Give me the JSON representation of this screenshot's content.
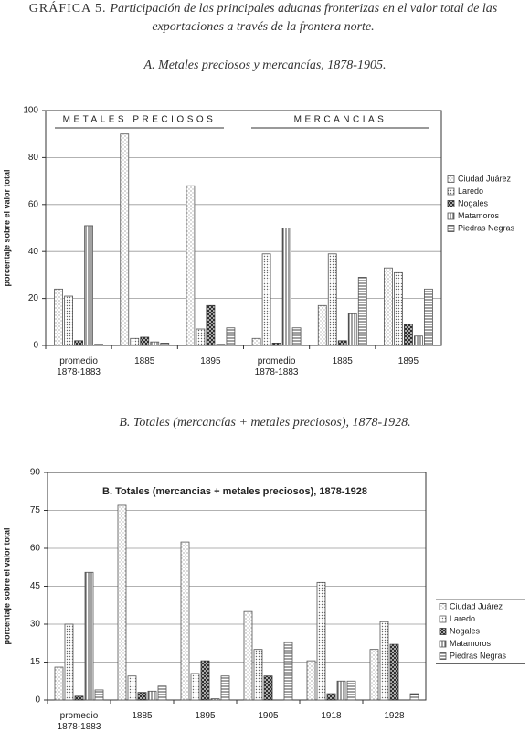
{
  "header": {
    "label": "GRÁFICA 5.",
    "title": "Participación de las principales aduanas fronterizas en el valor total de las exportaciones a través de la frontera norte."
  },
  "chart_data": [
    {
      "type": "bar",
      "heading": "A. Metales preciosos y mercancías, 1878-1905.",
      "y_label": "porcentaje sobre el valor total",
      "annotations": [
        "METALES PRECIOSOS",
        "MERCANCIAS"
      ],
      "categories": [
        "promedio\n1878-1883",
        "1885",
        "1895",
        "promedio\n1878-1883",
        "1885",
        "1895"
      ],
      "series": [
        {
          "name": "Ciudad Juárez",
          "color": "#555555",
          "pattern": "dots",
          "values": [
            24,
            90,
            68,
            3,
            17,
            33
          ]
        },
        {
          "name": "Laredo",
          "color": "#555555",
          "pattern": "dense",
          "values": [
            21,
            3,
            7,
            39,
            39,
            31
          ]
        },
        {
          "name": "Nogales",
          "color": "#333333",
          "pattern": "cross",
          "values": [
            2,
            3.5,
            17,
            1,
            2,
            9
          ]
        },
        {
          "name": "Matamoros",
          "color": "#555555",
          "pattern": "vert",
          "values": [
            51,
            1.5,
            0.5,
            50,
            13.5,
            4
          ]
        },
        {
          "name": "Piedras Negras",
          "color": "#555555",
          "pattern": "horiz",
          "values": [
            0.5,
            1,
            7.5,
            7.5,
            29,
            24
          ]
        }
      ],
      "ylim": [
        0,
        100
      ],
      "yticks": [
        0,
        20,
        40,
        60,
        80,
        100
      ],
      "grid": true,
      "legend": "right"
    },
    {
      "type": "bar",
      "heading": "B. Totales (mercancías + metales preciosos), 1878-1928.",
      "title": "B. Totales (mercancias + metales preciosos), 1878-1928",
      "y_label": "porcentaje sobre el valor total",
      "categories": [
        "promedio\n1878-1883",
        "1885",
        "1895",
        "1905",
        "1918",
        "1928"
      ],
      "series": [
        {
          "name": "Ciudad Juárez",
          "color": "#555555",
          "pattern": "dots",
          "values": [
            13,
            77,
            62.5,
            35,
            15.5,
            20
          ]
        },
        {
          "name": "Laredo",
          "color": "#555555",
          "pattern": "dense",
          "values": [
            30,
            9.5,
            10.5,
            20,
            46.5,
            31
          ]
        },
        {
          "name": "Nogales",
          "color": "#333333",
          "pattern": "cross",
          "values": [
            1.5,
            3,
            15.5,
            9.5,
            2.5,
            22
          ]
        },
        {
          "name": "Matamoros",
          "color": "#555555",
          "pattern": "vert",
          "values": [
            50.5,
            3.5,
            0.5,
            0,
            7.5,
            0
          ]
        },
        {
          "name": "Piedras Negras",
          "color": "#555555",
          "pattern": "horiz",
          "values": [
            4,
            5.5,
            9.5,
            23,
            7.5,
            2.5
          ]
        }
      ],
      "ylim": [
        0,
        90
      ],
      "yticks": [
        0,
        15,
        30,
        45,
        60,
        75,
        90
      ],
      "grid": true,
      "legend": "right"
    }
  ]
}
